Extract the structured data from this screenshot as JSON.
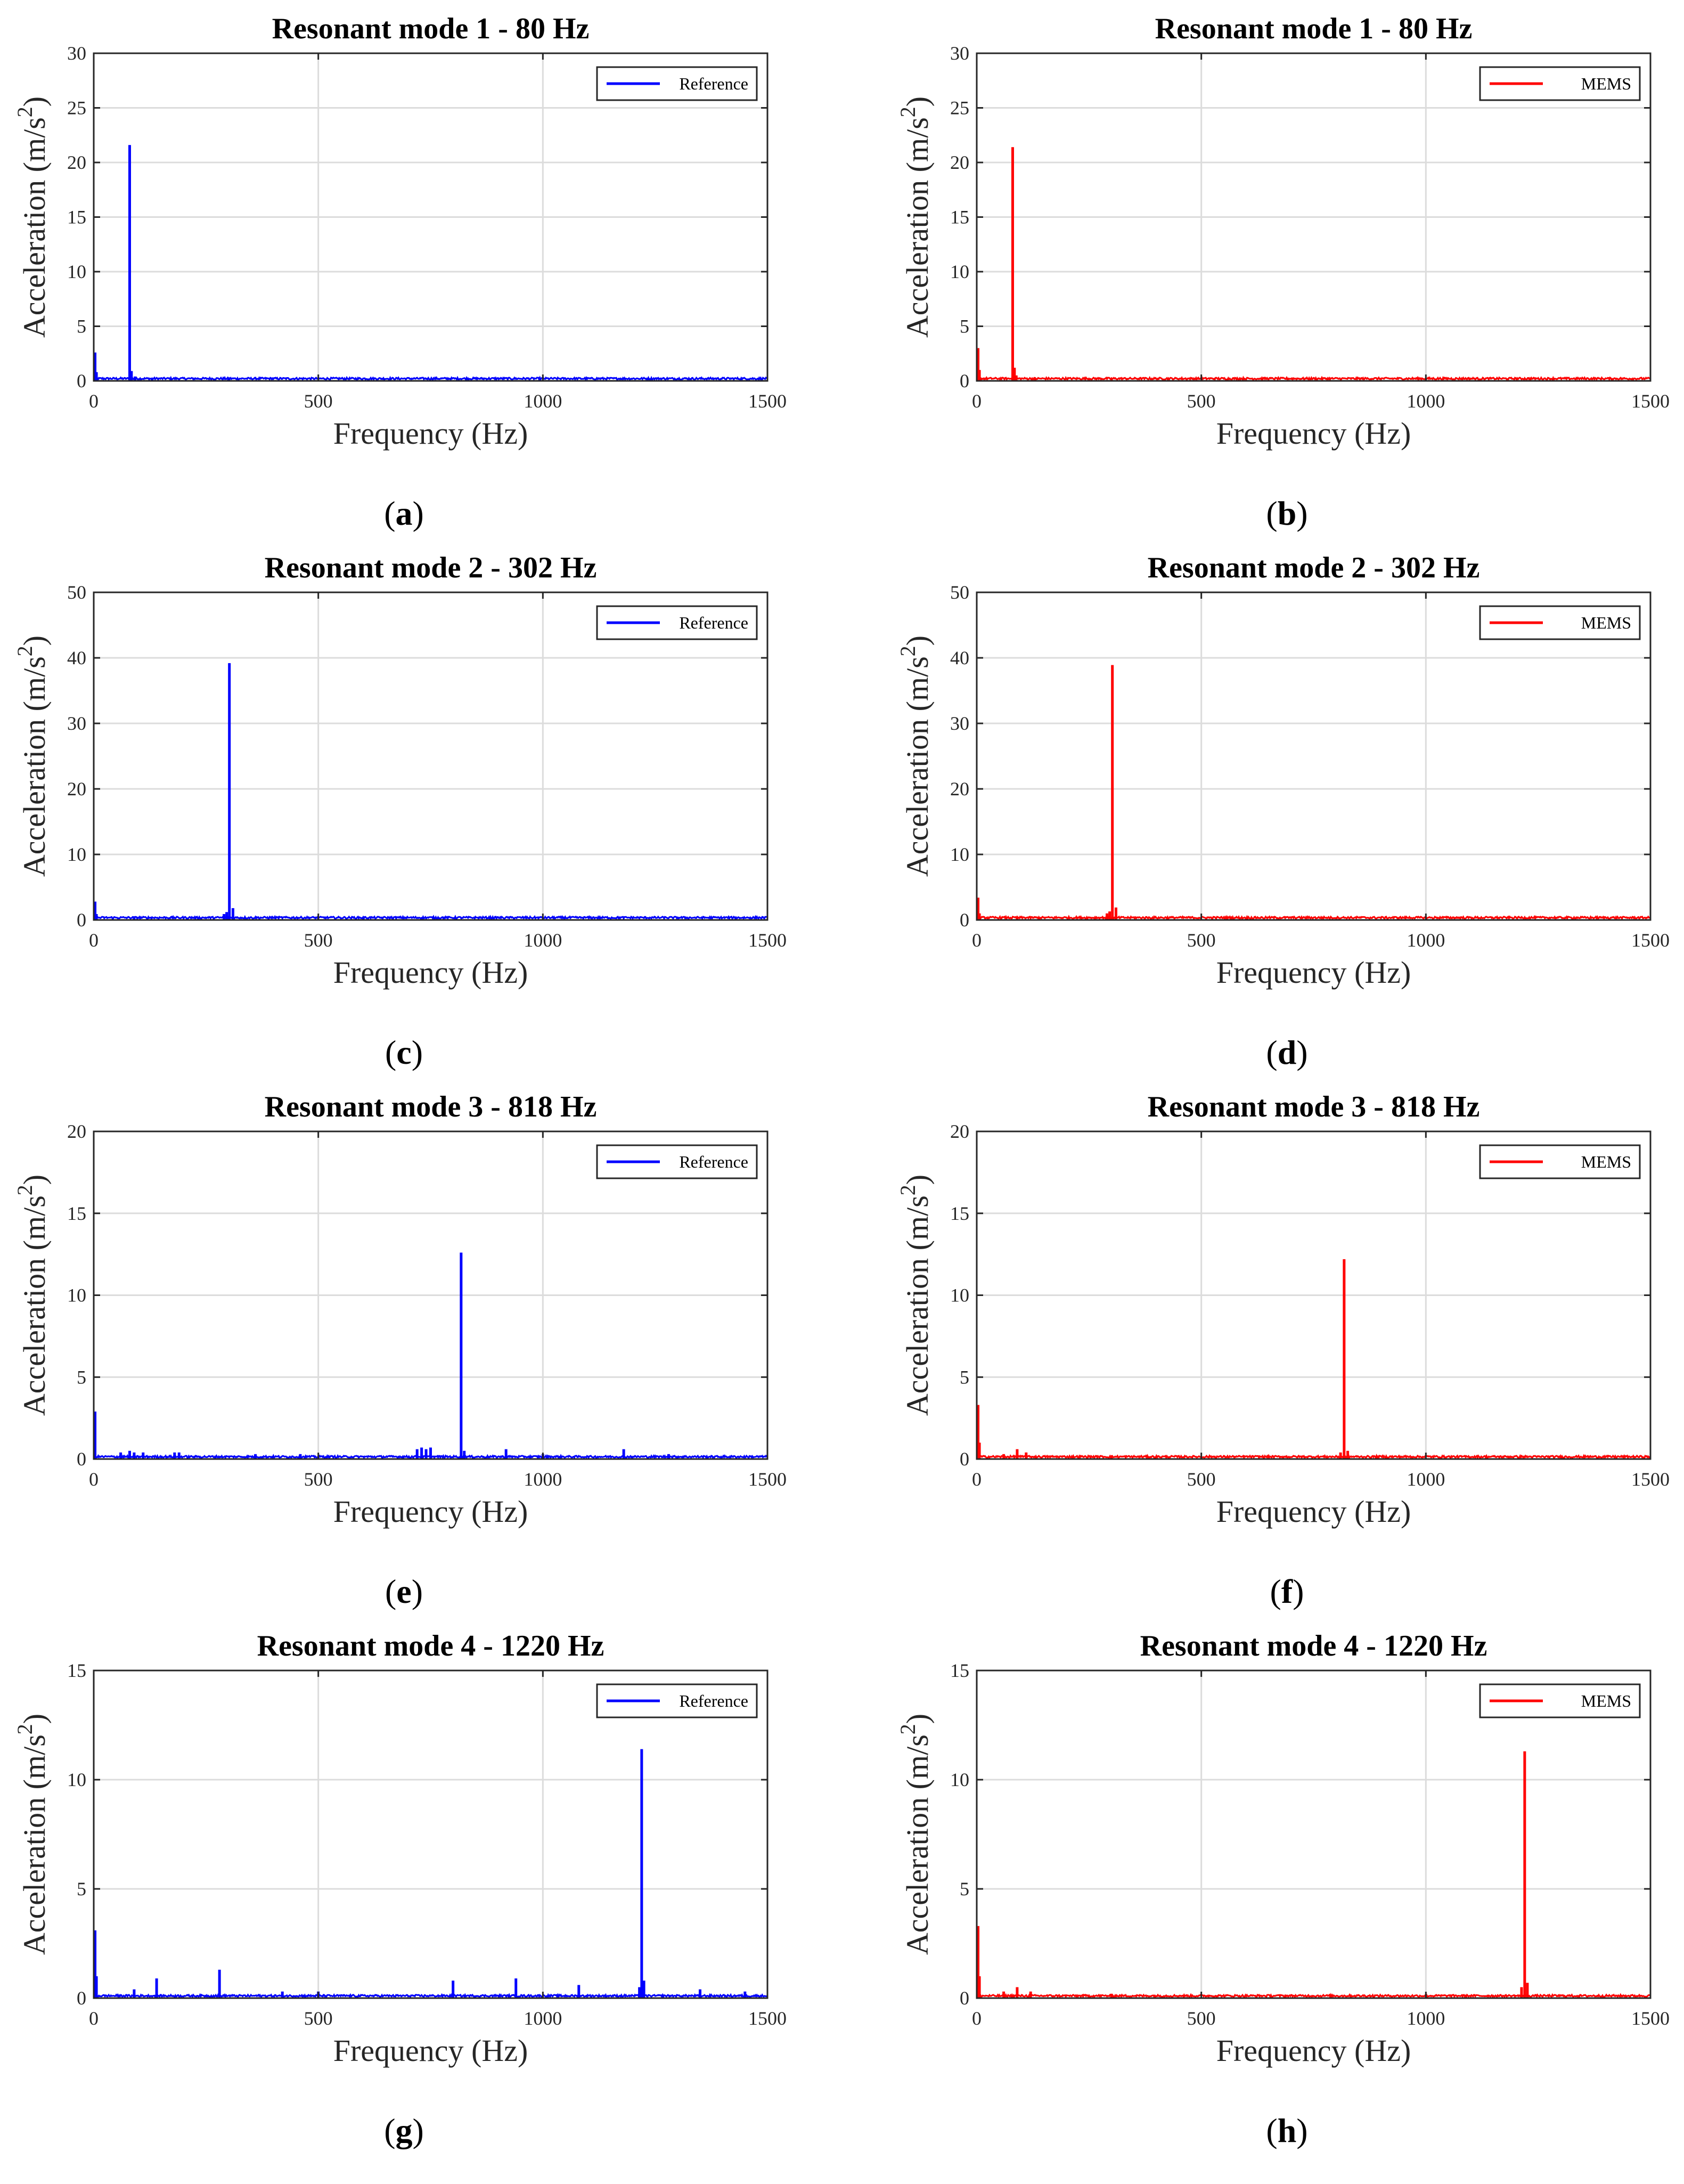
{
  "figure": {
    "x_ticks": [
      "0",
      "500",
      "1000",
      "1500"
    ]
  },
  "chart_data": [
    {
      "type": "line",
      "panel_label": "a",
      "title": "Resonant mode 1 - 80 Hz",
      "xlabel": "Frequency (Hz)",
      "ylabel": "Acceleration (m/s2)",
      "ylabel_base": "Acceleration (m/s",
      "ylabel_sup": "2",
      "ylabel_end": ")",
      "xlim": [
        0,
        1500
      ],
      "ylim": [
        0,
        30
      ],
      "yticks": [
        "0",
        "5",
        "10",
        "15",
        "20",
        "25",
        "30"
      ],
      "grid": true,
      "legend": "top-right",
      "series": [
        {
          "name": "Reference",
          "color": "#0000ff",
          "peaks": [
            [
              3,
              2.6
            ],
            [
              6,
              0.8
            ],
            [
              80,
              21.6
            ],
            [
              84,
              0.9
            ],
            [
              92,
              0.4
            ],
            [
              130,
              0.2
            ],
            [
              300,
              0.15
            ]
          ]
        }
      ]
    },
    {
      "type": "line",
      "panel_label": "b",
      "title": "Resonant mode 1 - 80 Hz",
      "xlabel": "Frequency (Hz)",
      "ylabel": "Acceleration (m/s2)",
      "ylabel_base": "Acceleration (m/s",
      "ylabel_sup": "2",
      "ylabel_end": ")",
      "xlim": [
        0,
        1500
      ],
      "ylim": [
        0,
        30
      ],
      "yticks": [
        "0",
        "5",
        "10",
        "15",
        "20",
        "25",
        "30"
      ],
      "grid": true,
      "legend": "top-right",
      "series": [
        {
          "name": "MEMS",
          "color": "#ff0000",
          "peaks": [
            [
              3,
              3.0
            ],
            [
              6,
              1.0
            ],
            [
              80,
              21.4
            ],
            [
              84,
              1.2
            ],
            [
              88,
              0.5
            ],
            [
              130,
              0.2
            ],
            [
              300,
              0.2
            ]
          ]
        }
      ]
    },
    {
      "type": "line",
      "panel_label": "c",
      "title": "Resonant mode 2 - 302 Hz",
      "xlabel": "Frequency (Hz)",
      "ylabel": "Acceleration (m/s2)",
      "ylabel_base": "Acceleration (m/s",
      "ylabel_sup": "2",
      "ylabel_end": ")",
      "xlim": [
        0,
        1500
      ],
      "ylim": [
        0,
        50
      ],
      "yticks": [
        "0",
        "10",
        "20",
        "30",
        "40",
        "50"
      ],
      "grid": true,
      "legend": "top-right",
      "series": [
        {
          "name": "Reference",
          "color": "#0000ff",
          "peaks": [
            [
              3,
              2.8
            ],
            [
              6,
              0.9
            ],
            [
              90,
              0.5
            ],
            [
              290,
              0.9
            ],
            [
              296,
              1.2
            ],
            [
              302,
              39.2
            ],
            [
              310,
              1.8
            ],
            [
              600,
              0.3
            ]
          ]
        }
      ]
    },
    {
      "type": "line",
      "panel_label": "d",
      "title": "Resonant mode 2 - 302 Hz",
      "xlabel": "Frequency (Hz)",
      "ylabel": "Acceleration (m/s2)",
      "ylabel_base": "Acceleration (m/s",
      "ylabel_sup": "2",
      "ylabel_end": ")",
      "xlim": [
        0,
        1500
      ],
      "ylim": [
        0,
        50
      ],
      "yticks": [
        "0",
        "10",
        "20",
        "30",
        "40",
        "50"
      ],
      "grid": true,
      "legend": "top-right",
      "series": [
        {
          "name": "MEMS",
          "color": "#ff0000",
          "peaks": [
            [
              3,
              3.4
            ],
            [
              6,
              1.0
            ],
            [
              90,
              0.5
            ],
            [
              290,
              1.0
            ],
            [
              296,
              1.3
            ],
            [
              302,
              38.9
            ],
            [
              310,
              1.9
            ],
            [
              600,
              0.3
            ]
          ]
        }
      ]
    },
    {
      "type": "line",
      "panel_label": "e",
      "title": "Resonant mode 3 - 818 Hz",
      "xlabel": "Frequency (Hz)",
      "ylabel": "Acceleration (m/s2)",
      "ylabel_base": "Acceleration (m/s",
      "ylabel_sup": "2",
      "ylabel_end": ")",
      "xlim": [
        0,
        1500
      ],
      "ylim": [
        0,
        20
      ],
      "yticks": [
        "0",
        "5",
        "10",
        "15",
        "20"
      ],
      "grid": true,
      "legend": "top-right",
      "series": [
        {
          "name": "Reference",
          "color": "#0000ff",
          "peaks": [
            [
              3,
              2.9
            ],
            [
              60,
              0.4
            ],
            [
              80,
              0.5
            ],
            [
              90,
              0.4
            ],
            [
              110,
              0.4
            ],
            [
              180,
              0.4
            ],
            [
              190,
              0.4
            ],
            [
              360,
              0.3
            ],
            [
              460,
              0.3
            ],
            [
              720,
              0.6
            ],
            [
              730,
              0.7
            ],
            [
              740,
              0.6
            ],
            [
              750,
              0.7
            ],
            [
              818,
              12.6
            ],
            [
              825,
              0.5
            ],
            [
              918,
              0.6
            ],
            [
              1000,
              0.3
            ],
            [
              1180,
              0.6
            ],
            [
              1280,
              0.3
            ]
          ]
        }
      ]
    },
    {
      "type": "line",
      "panel_label": "f",
      "title": "Resonant mode 3 - 818 Hz",
      "xlabel": "Frequency (Hz)",
      "ylabel": "Acceleration (m/s2)",
      "ylabel_base": "Acceleration (m/s",
      "ylabel_sup": "2",
      "ylabel_end": ")",
      "xlim": [
        0,
        1500
      ],
      "ylim": [
        0,
        20
      ],
      "yticks": [
        "0",
        "5",
        "10",
        "15",
        "20"
      ],
      "grid": true,
      "legend": "top-right",
      "series": [
        {
          "name": "MEMS",
          "color": "#ff0000",
          "peaks": [
            [
              3,
              3.3
            ],
            [
              6,
              1.0
            ],
            [
              60,
              0.3
            ],
            [
              90,
              0.6
            ],
            [
              110,
              0.4
            ],
            [
              300,
              0.2
            ],
            [
              810,
              0.4
            ],
            [
              818,
              12.2
            ],
            [
              826,
              0.5
            ]
          ]
        }
      ]
    },
    {
      "type": "line",
      "panel_label": "g",
      "title": "Resonant mode 4 - 1220 Hz",
      "xlabel": "Frequency (Hz)",
      "ylabel": "Acceleration (m/s2)",
      "ylabel_base": "Acceleration (m/s",
      "ylabel_sup": "2",
      "ylabel_end": ")",
      "xlim": [
        0,
        1500
      ],
      "ylim": [
        0,
        15
      ],
      "yticks": [
        "0",
        "5",
        "10",
        "15"
      ],
      "grid": true,
      "legend": "top-right",
      "series": [
        {
          "name": "Reference",
          "color": "#0000ff",
          "peaks": [
            [
              3,
              3.1
            ],
            [
              6,
              1.0
            ],
            [
              90,
              0.4
            ],
            [
              140,
              0.9
            ],
            [
              280,
              1.3
            ],
            [
              420,
              0.3
            ],
            [
              500,
              0.3
            ],
            [
              800,
              0.8
            ],
            [
              940,
              0.9
            ],
            [
              1080,
              0.6
            ],
            [
              1215,
              0.5
            ],
            [
              1220,
              11.4
            ],
            [
              1225,
              0.8
            ],
            [
              1350,
              0.4
            ],
            [
              1450,
              0.3
            ]
          ]
        }
      ]
    },
    {
      "type": "line",
      "panel_label": "h",
      "title": "Resonant mode 4 - 1220 Hz",
      "xlabel": "Frequency (Hz)",
      "ylabel": "Acceleration (m/s2)",
      "ylabel_base": "Acceleration (m/s",
      "ylabel_sup": "2",
      "ylabel_end": ")",
      "xlim": [
        0,
        1500
      ],
      "ylim": [
        0,
        15
      ],
      "yticks": [
        "0",
        "5",
        "10",
        "15"
      ],
      "grid": true,
      "legend": "top-right",
      "series": [
        {
          "name": "MEMS",
          "color": "#ff0000",
          "peaks": [
            [
              3,
              3.3
            ],
            [
              6,
              1.0
            ],
            [
              60,
              0.3
            ],
            [
              90,
              0.5
            ],
            [
              120,
              0.3
            ],
            [
              300,
              0.2
            ],
            [
              1213,
              0.5
            ],
            [
              1220,
              11.3
            ],
            [
              1226,
              0.7
            ]
          ]
        }
      ]
    }
  ]
}
